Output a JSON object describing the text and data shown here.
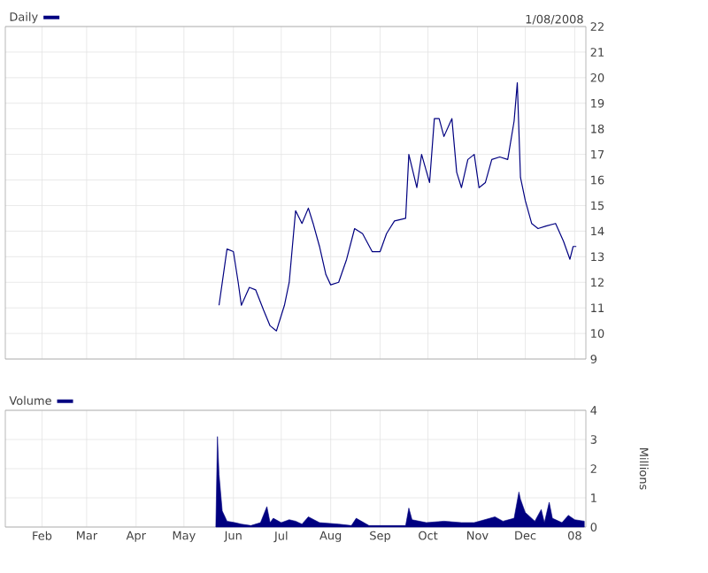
{
  "chart_data": [
    {
      "type": "line",
      "annotations": [
        "1/08/2008"
      ],
      "legend": "top left",
      "grid": true,
      "tick_labels": "y",
      "xlim": [
        "2007-01-09",
        "2008-01-08"
      ],
      "xticks": [
        {
          "value": "2007-02-01",
          "label": null
        },
        {
          "value": "2007-03-01",
          "label": null
        },
        {
          "value": "2007-04-01",
          "label": null
        },
        {
          "value": "2007-05-01",
          "label": null
        },
        {
          "value": "2007-06-01",
          "label": null
        },
        {
          "value": "2007-07-01",
          "label": null
        },
        {
          "value": "2007-08-01",
          "label": null
        },
        {
          "value": "2007-09-01",
          "label": null
        },
        {
          "value": "2007-10-01",
          "label": null
        },
        {
          "value": "2007-11-01",
          "label": null
        },
        {
          "value": "2007-12-01",
          "label": null
        },
        {
          "value": "2008-01-01",
          "label": null
        }
      ],
      "ylim": [
        9,
        22
      ],
      "yticks": [
        9,
        10,
        11,
        12,
        13,
        14,
        15,
        16,
        17,
        18,
        19,
        20,
        21,
        22
      ],
      "series": [
        {
          "name": "Daily",
          "color": "#000080",
          "x": [
            "2007-05-23",
            "2007-05-28",
            "2007-06-01",
            "2007-06-04",
            "2007-06-06",
            "2007-06-11",
            "2007-06-15",
            "2007-06-20",
            "2007-06-24",
            "2007-06-28",
            "2007-07-03",
            "2007-07-06",
            "2007-07-08",
            "2007-07-10",
            "2007-07-14",
            "2007-07-18",
            "2007-07-21",
            "2007-07-25",
            "2007-07-29",
            "2007-08-01",
            "2007-08-06",
            "2007-08-11",
            "2007-08-16",
            "2007-08-21",
            "2007-08-27",
            "2007-09-01",
            "2007-09-05",
            "2007-09-10",
            "2007-09-17",
            "2007-09-19",
            "2007-09-24",
            "2007-09-27",
            "2007-10-02",
            "2007-10-05",
            "2007-10-08",
            "2007-10-11",
            "2007-10-16",
            "2007-10-19",
            "2007-10-22",
            "2007-10-26",
            "2007-10-30",
            "2007-11-02",
            "2007-11-06",
            "2007-11-10",
            "2007-11-15",
            "2007-11-20",
            "2007-11-24",
            "2007-11-26",
            "2007-11-28",
            "2007-12-01",
            "2007-12-05",
            "2007-12-09",
            "2007-12-14",
            "2007-12-20",
            "2007-12-25",
            "2007-12-29",
            "2007-12-31",
            "2008-01-02"
          ],
          "values": [
            11.1,
            13.3,
            13.2,
            12.0,
            11.1,
            11.8,
            11.7,
            10.9,
            10.3,
            10.1,
            11.1,
            12.0,
            13.4,
            14.8,
            14.3,
            14.9,
            14.3,
            13.4,
            12.3,
            11.9,
            12.0,
            12.9,
            14.1,
            13.9,
            13.2,
            13.2,
            13.9,
            14.4,
            14.5,
            17.0,
            15.7,
            17.0,
            15.9,
            18.4,
            18.4,
            17.7,
            18.4,
            16.3,
            15.7,
            16.8,
            17.0,
            15.7,
            15.9,
            16.8,
            16.9,
            16.8,
            18.3,
            19.8,
            16.1,
            15.2,
            14.3,
            14.1,
            14.2,
            14.3,
            13.6,
            12.9,
            13.4,
            13.4
          ]
        }
      ]
    },
    {
      "type": "area",
      "ylabel": "Millions",
      "legend": "top left",
      "grid": true,
      "xlim": [
        "2007-01-09",
        "2008-01-08"
      ],
      "xticks": [
        {
          "value": "2007-02-01",
          "label": "Feb"
        },
        {
          "value": "2007-03-01",
          "label": "Mar"
        },
        {
          "value": "2007-04-01",
          "label": "Apr"
        },
        {
          "value": "2007-05-01",
          "label": "May"
        },
        {
          "value": "2007-06-01",
          "label": "Jun"
        },
        {
          "value": "2007-07-01",
          "label": "Jul"
        },
        {
          "value": "2007-08-01",
          "label": "Aug"
        },
        {
          "value": "2007-09-01",
          "label": "Sep"
        },
        {
          "value": "2007-10-01",
          "label": "Oct"
        },
        {
          "value": "2007-11-01",
          "label": "Nov"
        },
        {
          "value": "2007-12-01",
          "label": "Dec"
        },
        {
          "value": "2008-01-01",
          "label": "08"
        }
      ],
      "ylim": [
        0,
        4
      ],
      "yticks": [
        0,
        1,
        2,
        3,
        4
      ],
      "series": [
        {
          "name": "Volume",
          "color": "#000080",
          "x": [
            "2007-05-21",
            "2007-05-22",
            "2007-05-23",
            "2007-05-25",
            "2007-05-28",
            "2007-06-02",
            "2007-06-06",
            "2007-06-12",
            "2007-06-18",
            "2007-06-22",
            "2007-06-24",
            "2007-06-26",
            "2007-07-01",
            "2007-07-06",
            "2007-07-10",
            "2007-07-14",
            "2007-07-18",
            "2007-07-25",
            "2007-08-06",
            "2007-08-14",
            "2007-08-17",
            "2007-08-25",
            "2007-09-08",
            "2007-09-17",
            "2007-09-19",
            "2007-09-21",
            "2007-09-30",
            "2007-10-11",
            "2007-10-22",
            "2007-10-30",
            "2007-11-12",
            "2007-11-17",
            "2007-11-24",
            "2007-11-27",
            "2007-11-28",
            "2007-12-01",
            "2007-12-04",
            "2007-12-07",
            "2007-12-11",
            "2007-12-13",
            "2007-12-16",
            "2007-12-18",
            "2007-12-24",
            "2007-12-28",
            "2008-01-01",
            "2008-01-07"
          ],
          "values": [
            0,
            3.1,
            1.8,
            0.55,
            0.2,
            0.15,
            0.1,
            0.05,
            0.15,
            0.7,
            0.15,
            0.3,
            0.15,
            0.25,
            0.2,
            0.1,
            0.35,
            0.15,
            0.1,
            0.05,
            0.3,
            0.05,
            0.05,
            0.05,
            0.65,
            0.25,
            0.15,
            0.2,
            0.15,
            0.15,
            0.35,
            0.2,
            0.3,
            1.2,
            0.95,
            0.5,
            0.35,
            0.2,
            0.6,
            0.15,
            0.85,
            0.3,
            0.15,
            0.4,
            0.25,
            0.2
          ]
        }
      ]
    }
  ]
}
